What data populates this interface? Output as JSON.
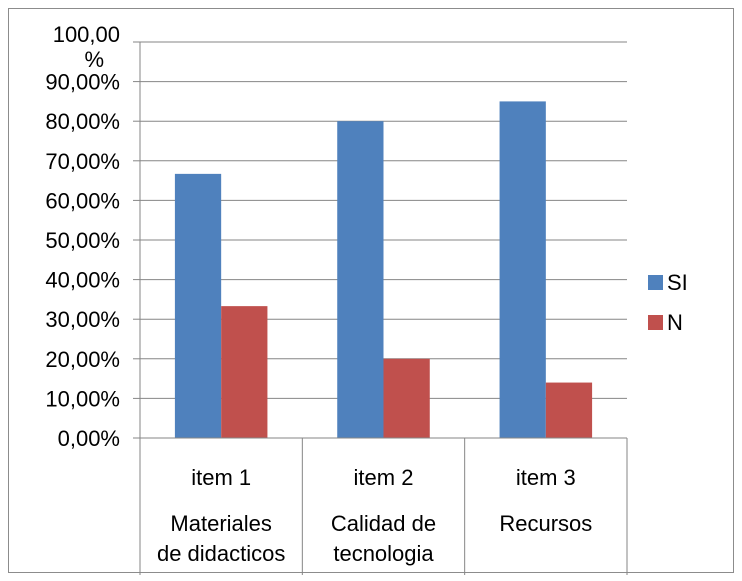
{
  "chart_data": {
    "type": "bar",
    "categories": [
      "item 1",
      "item 2",
      "item 3"
    ],
    "group_labels": [
      [
        "Materiales",
        "de didacticos"
      ],
      [
        "Calidad de",
        "tecnologia"
      ],
      [
        "Recursos",
        ""
      ]
    ],
    "series": [
      {
        "name": "SI",
        "values": [
          66.7,
          80.0,
          85.0
        ],
        "color": "#4f81bd"
      },
      {
        "name": "N",
        "values": [
          33.3,
          20.0,
          14.0
        ],
        "color": "#c0504d"
      }
    ],
    "y_tick_labels": [
      "0,00%",
      "10,00%",
      "20,00%",
      "30,00%",
      "40,00%",
      "50,00%",
      "60,00%",
      "70,00%",
      "80,00%",
      "90,00%",
      "100,00 %"
    ],
    "ylim": [
      0,
      100
    ],
    "grid": true,
    "legend": "right",
    "title": "",
    "xlabel": "",
    "ylabel": ""
  }
}
